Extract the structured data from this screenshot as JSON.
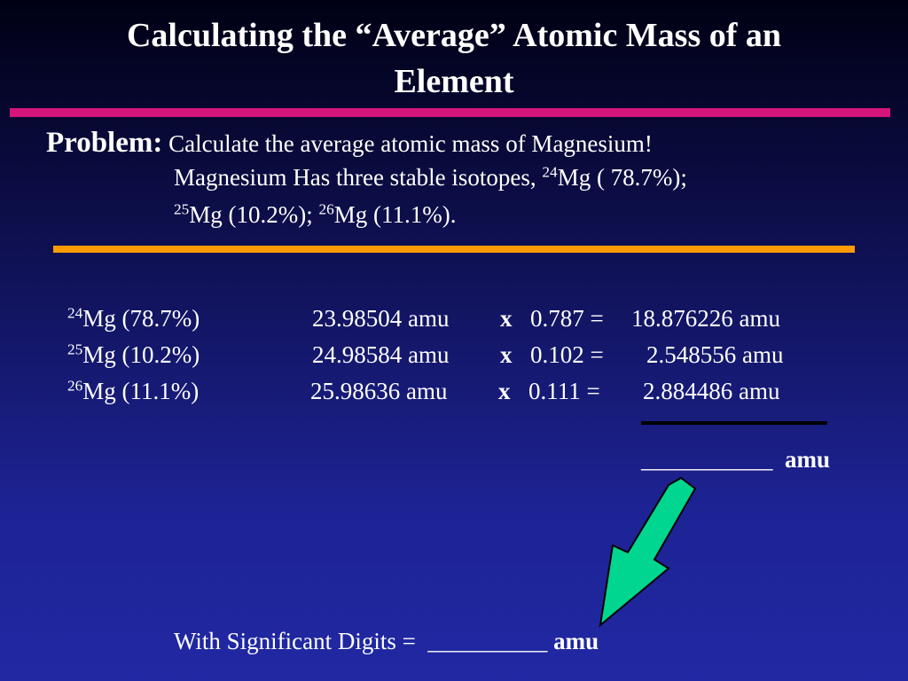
{
  "title_line1": "Calculating the “Average” Atomic Mass of an",
  "title_line2": "Element",
  "problem_label": "Problem:",
  "problem_text": "Calculate the average atomic mass of Magnesium!",
  "problem_line2": {
    "prefix": "Magnesium Has three stable isotopes,",
    "iso1_mass": "24",
    "iso1_rest": "Mg ( 78.7%);"
  },
  "problem_line3": {
    "iso2_mass": "25",
    "iso2_rest": "Mg (10.2%);",
    "iso3_mass": "26",
    "iso3_rest": "Mg (11.1%)."
  },
  "rows": [
    {
      "mass": "24",
      "isotope": "Mg  (78.7%)",
      "calc": "23.98504 amu",
      "times": "x",
      "factor": "0.787 =",
      "result": "18.876226  amu"
    },
    {
      "mass": "25",
      "isotope": "Mg  (10.2%)",
      "calc": "24.98584 amu",
      "times": "x",
      "factor": "0.102 =",
      "result": "2.548556  amu"
    },
    {
      "mass": "26",
      "isotope": "Mg  (11.1%)",
      "calc": "25.98636 amu",
      "times": "x",
      "factor": "0.111 =",
      "result": "2.884486  amu"
    }
  ],
  "total_blank": "___________",
  "total_unit": "amu",
  "sig_label": "With Significant Digits  =",
  "sig_blank": "__________",
  "sig_unit": "amu",
  "colors": {
    "title_rule": "#d6157a",
    "separator_rule": "#ff9b05",
    "arrow_fill": "#00d68f"
  }
}
